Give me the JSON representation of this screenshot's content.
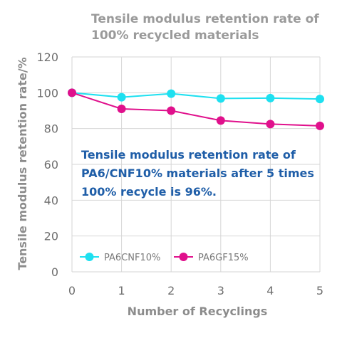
{
  "chart_data": {
    "type": "line",
    "title_lines": [
      "Tensile modulus retention rate of",
      "100% recycled materials"
    ],
    "xlabel": "Number of Recyclings",
    "ylabel": "Tensile modulus retention rate/%",
    "x": [
      0,
      1,
      2,
      3,
      4,
      5
    ],
    "xlim": [
      0,
      5
    ],
    "ylim": [
      0,
      120
    ],
    "yticks": [
      0,
      20,
      40,
      60,
      80,
      100,
      120
    ],
    "grid": true,
    "legend_position": "bottom-left",
    "series": [
      {
        "name": "PA6CNF10%",
        "color": "#1ee0f0",
        "values": [
          100,
          97.5,
          99.5,
          96.8,
          97,
          96.5
        ]
      },
      {
        "name": "PA6GF15%",
        "color": "#e0108c",
        "values": [
          100,
          91,
          90,
          84.5,
          82.5,
          81.5
        ]
      }
    ],
    "annotation_lines": [
      "Tensile modulus retention rate of",
      "PA6/CNF10% materials after 5 times",
      "100% recycle is 96%."
    ]
  }
}
